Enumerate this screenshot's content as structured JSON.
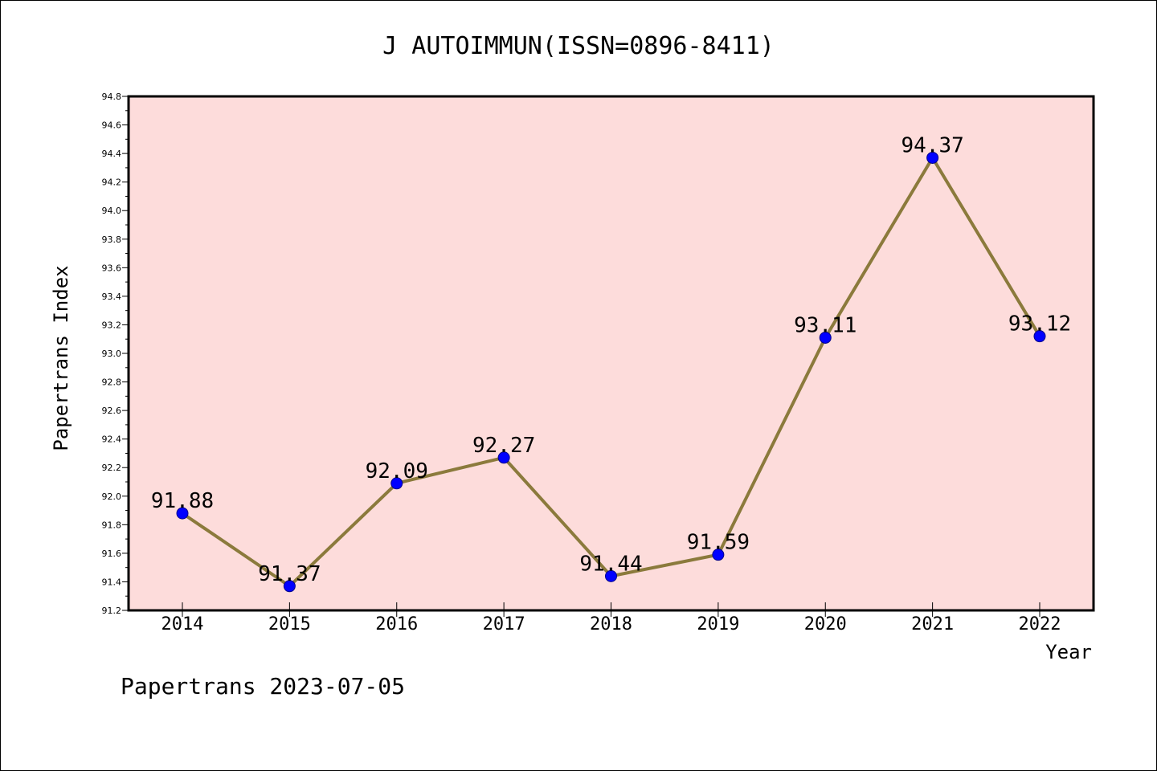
{
  "chart_data": {
    "type": "line",
    "title": "J AUTOIMMUN(ISSN=0896-8411)",
    "xlabel": "Year",
    "ylabel": "Papertrans Index",
    "categories": [
      "2014",
      "2015",
      "2016",
      "2017",
      "2018",
      "2019",
      "2020",
      "2021",
      "2022"
    ],
    "series": [
      {
        "values": [
          91.88,
          91.37,
          92.09,
          92.27,
          91.44,
          91.59,
          93.11,
          94.37,
          93.12
        ],
        "labels": [
          "91.88",
          "91.37",
          "92.09",
          "92.27",
          "91.44",
          "91.59",
          "93.11",
          "94.37",
          "93.12"
        ]
      }
    ],
    "ylim": [
      91.2,
      94.8
    ],
    "yticks": [
      "91.2",
      "91.4",
      "91.6",
      "91.8",
      "92.0",
      "92.2",
      "92.4",
      "92.6",
      "92.8",
      "93.0",
      "93.2",
      "93.4",
      "93.6",
      "93.8",
      "94.0",
      "94.2",
      "94.4",
      "94.6",
      "94.8"
    ],
    "grid": false,
    "colors": {
      "plot_background": "#fddcdb",
      "line": "#8b7a3c",
      "marker": "#0000ff"
    }
  },
  "footer": {
    "text": "Papertrans 2023-07-05"
  }
}
